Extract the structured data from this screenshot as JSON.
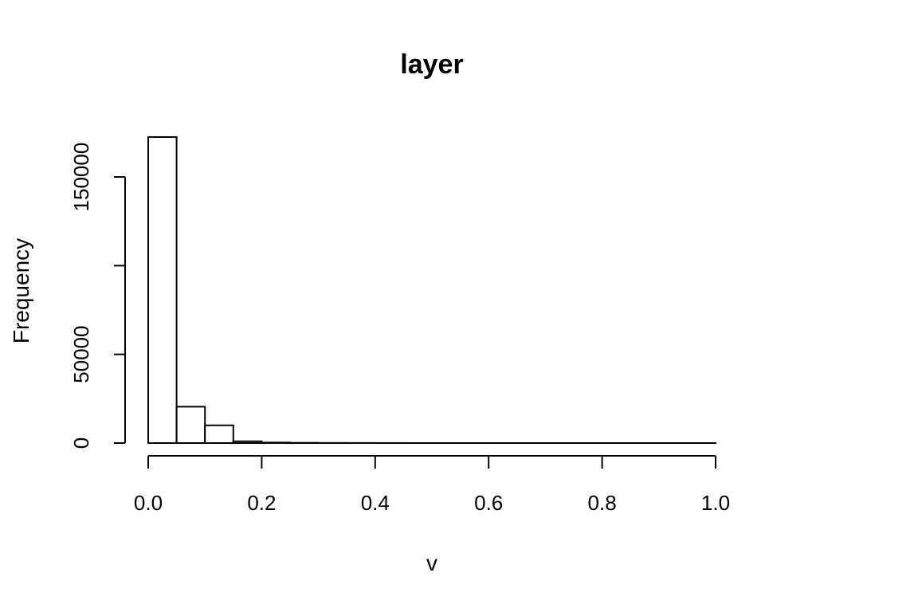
{
  "chart_data": {
    "type": "bar",
    "title": "layer",
    "xlabel": "v",
    "ylabel": "Frequency",
    "bin_width": 0.05,
    "bins": [
      {
        "start": 0.0,
        "end": 0.05,
        "count": 172500
      },
      {
        "start": 0.05,
        "end": 0.1,
        "count": 20500
      },
      {
        "start": 0.1,
        "end": 0.15,
        "count": 10000
      },
      {
        "start": 0.15,
        "end": 0.2,
        "count": 1000
      },
      {
        "start": 0.2,
        "end": 0.25,
        "count": 300
      },
      {
        "start": 0.25,
        "end": 0.3,
        "count": 150
      },
      {
        "start": 0.3,
        "end": 0.35,
        "count": 80
      },
      {
        "start": 0.35,
        "end": 0.4,
        "count": 50
      },
      {
        "start": 0.4,
        "end": 0.45,
        "count": 30
      },
      {
        "start": 0.45,
        "end": 0.5,
        "count": 20
      },
      {
        "start": 0.5,
        "end": 0.55,
        "count": 15
      },
      {
        "start": 0.55,
        "end": 0.6,
        "count": 10
      },
      {
        "start": 0.6,
        "end": 0.65,
        "count": 8
      },
      {
        "start": 0.65,
        "end": 0.7,
        "count": 6
      },
      {
        "start": 0.7,
        "end": 0.75,
        "count": 5
      },
      {
        "start": 0.75,
        "end": 0.8,
        "count": 4
      },
      {
        "start": 0.8,
        "end": 0.85,
        "count": 3
      },
      {
        "start": 0.85,
        "end": 0.9,
        "count": 2
      },
      {
        "start": 0.9,
        "end": 0.95,
        "count": 2
      },
      {
        "start": 0.95,
        "end": 1.0,
        "count": 1
      }
    ],
    "xlim": [
      0,
      1
    ],
    "ylim": [
      0,
      172500
    ],
    "x_ticks": [
      0.0,
      0.2,
      0.4,
      0.6,
      0.8,
      1.0
    ],
    "x_tick_labels": [
      "0.0",
      "0.2",
      "0.4",
      "0.6",
      "0.8",
      "1.0"
    ],
    "y_ticks": [
      0,
      50000,
      100000,
      150000
    ],
    "y_tick_labels": [
      "0",
      "50000",
      "",
      "150000"
    ],
    "grid": false,
    "colors": {
      "bar_fill": "#ffffff",
      "bar_stroke": "#000000"
    }
  }
}
